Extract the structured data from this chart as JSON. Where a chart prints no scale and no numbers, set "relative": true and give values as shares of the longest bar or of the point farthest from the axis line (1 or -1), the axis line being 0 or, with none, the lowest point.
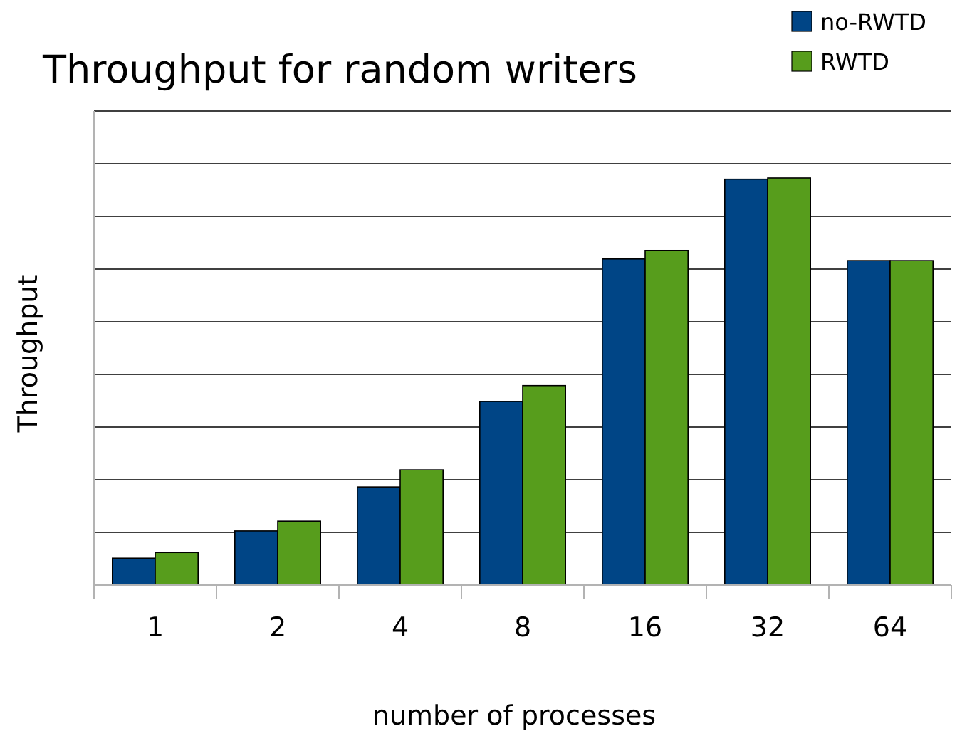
{
  "chart_data": {
    "type": "bar",
    "title": "Throughput for random writers",
    "xlabel": "number of processes",
    "ylabel": "Throughput",
    "categories": [
      "1",
      "2",
      "4",
      "8",
      "16",
      "32",
      "64"
    ],
    "relative": true,
    "grid": "y",
    "legend": "top right",
    "series": [
      {
        "name": "no-RWTD",
        "color": "#004586",
        "values": [
          0.066,
          0.133,
          0.241,
          0.451,
          0.801,
          0.997,
          0.797
        ]
      },
      {
        "name": "RWTD",
        "color": "#579d1c",
        "values": [
          0.08,
          0.157,
          0.283,
          0.49,
          0.822,
          1,
          0.797
        ]
      }
    ]
  }
}
